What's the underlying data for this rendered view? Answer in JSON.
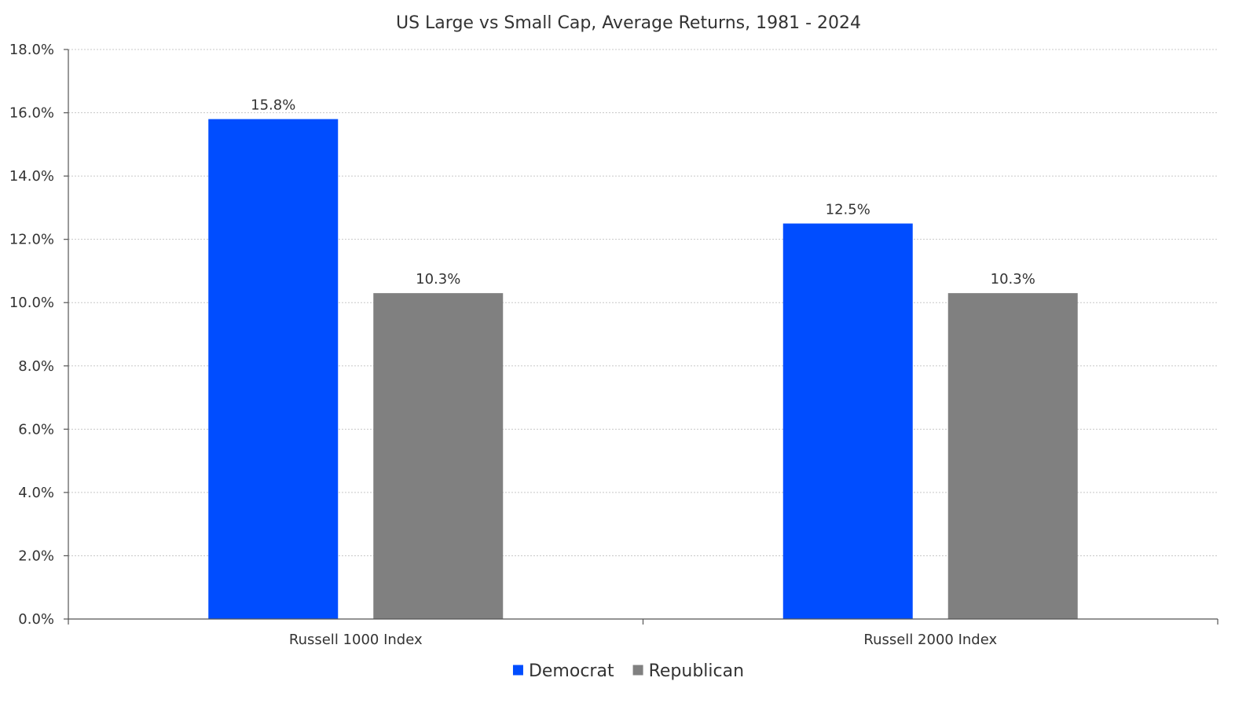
{
  "chart_data": {
    "type": "bar",
    "title": "US Large vs Small Cap, Average Returns, 1981 - 2024",
    "xlabel": "",
    "ylabel": "",
    "categories": [
      "Russell 1000 Index",
      "Russell 2000 Index"
    ],
    "series": [
      {
        "name": "Democrat",
        "color": "#004dff",
        "values": [
          15.8,
          12.5
        ],
        "labels": [
          "15.8%",
          "12.5%"
        ]
      },
      {
        "name": "Republican",
        "color": "#808080",
        "values": [
          10.3,
          10.3
        ],
        "labels": [
          "10.3%",
          "10.3%"
        ]
      }
    ],
    "ylim": [
      0,
      18
    ],
    "yticks": [
      0,
      2,
      4,
      6,
      8,
      10,
      12,
      14,
      16,
      18
    ],
    "ytick_labels": [
      "0.0%",
      "2.0%",
      "4.0%",
      "6.0%",
      "8.0%",
      "10.0%",
      "12.0%",
      "14.0%",
      "16.0%",
      "18.0%"
    ],
    "grid": true,
    "legend_position": "bottom-center"
  }
}
